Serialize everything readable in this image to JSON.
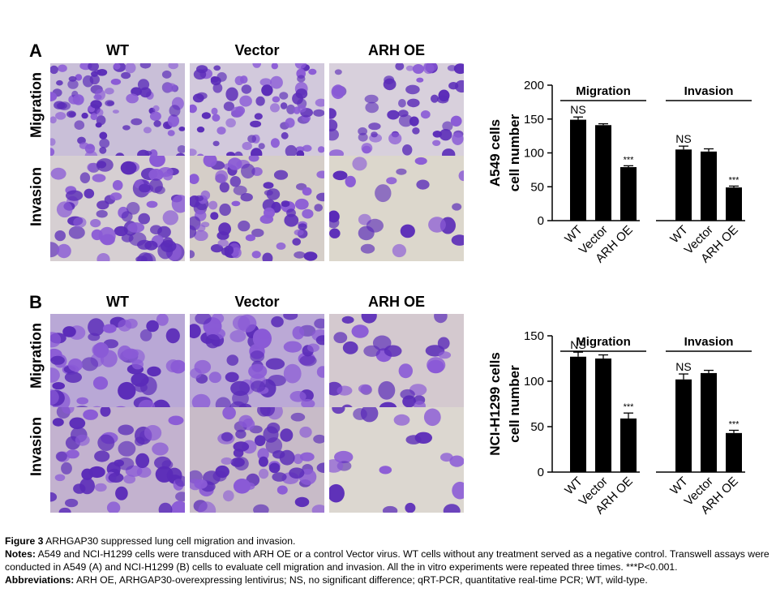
{
  "panels": [
    {
      "letter": "A",
      "columns": [
        "WT",
        "Vector",
        "ARH OE"
      ],
      "rows": [
        "Migration",
        "Invasion"
      ],
      "chart_data": {
        "type": "bar",
        "ylabel": "A549 cells\ncell number",
        "ylim": [
          0,
          200
        ],
        "yticks": [
          0,
          50,
          100,
          150,
          200
        ],
        "groups": [
          "Migration",
          "Invasion"
        ],
        "categories": [
          "WT",
          "Vector",
          "ARH OE"
        ],
        "series": [
          {
            "values": [
              149,
              141,
              79
            ],
            "errors": [
              4,
              2,
              2
            ],
            "annotations": [
              "NS",
              "",
              "***"
            ]
          },
          {
            "values": [
              105,
              102,
              49
            ],
            "errors": [
              5,
              4,
              2
            ],
            "annotations": [
              "NS",
              "",
              "***"
            ]
          }
        ],
        "bar_color": "#000000"
      }
    },
    {
      "letter": "B",
      "columns": [
        "WT",
        "Vector",
        "ARH OE"
      ],
      "rows": [
        "Migration",
        "Invasion"
      ],
      "chart_data": {
        "type": "bar",
        "ylabel": "NCI-H1299 cells\ncell number",
        "ylim": [
          0,
          150
        ],
        "yticks": [
          0,
          50,
          100,
          150
        ],
        "groups": [
          "Migration",
          "Invasion"
        ],
        "categories": [
          "WT",
          "Vector",
          "ARH OE"
        ],
        "series": [
          {
            "values": [
              127,
              125,
              59
            ],
            "errors": [
              5,
              4,
              6
            ],
            "annotations": [
              "NS",
              "",
              "***"
            ]
          },
          {
            "values": [
              102,
              109,
              43
            ],
            "errors": [
              6,
              3,
              3
            ],
            "annotations": [
              "NS",
              "",
              "***"
            ]
          }
        ],
        "bar_color": "#000000"
      }
    }
  ],
  "caption": {
    "figure_label": "Figure 3",
    "figure_text": " ARHGAP30 suppressed lung cell migration and invasion.",
    "notes_label": "Notes:",
    "notes_text": " A549 and NCI-H1299 cells were transduced with ARH OE or a control Vector virus. WT cells without any treatment served as a negative control. Transwell assays were conducted in A549 (A) and NCI-H1299 (B) cells to evaluate cell migration and invasion. All the in vitro experiments were repeated three times. ***P<0.001.",
    "abbrev_label": "Abbreviations:",
    "abbrev_text": " ARH OE, ARHGAP30-overexpressing lentivirus; NS, no significant difference; qRT-PCR, quantitative real-time PCR; WT, wild-type."
  },
  "colors": {
    "stain_dark": "#5a2bb8",
    "stain_mid": "#8a5ad6",
    "background_light": "#d8d2c8"
  }
}
